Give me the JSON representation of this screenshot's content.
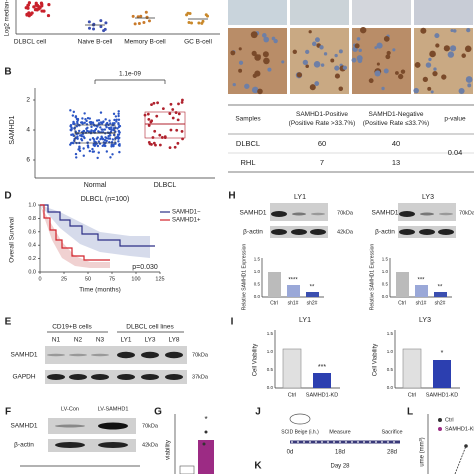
{
  "figure": {
    "a": {
      "y_label": "Log2 median-",
      "groups": [
        "DLBCL cell",
        "Naive B-cell",
        "Memory B-cell",
        "GC B-cell"
      ]
    },
    "table": {
      "header": [
        [
          "Samples"
        ],
        [
          "SAMHD1-Positive",
          "(Positive Rate >33.7%)"
        ],
        [
          "SAMHD1-Negative",
          "(Positive Rate ≤33.7%)"
        ],
        [
          "p-value"
        ]
      ],
      "rows": [
        [
          "DLBCL",
          "60",
          "40"
        ],
        [
          "RHL",
          "7",
          "13"
        ]
      ],
      "p_value": "0.04"
    },
    "b": {
      "label": "B",
      "y_label": "SAMHD1",
      "y_ticks": [
        "2",
        "4",
        "6"
      ],
      "p_value": "1.1e-09",
      "groups": [
        "Normal",
        "DLBCL"
      ]
    },
    "d": {
      "label": "D",
      "title": "DLBCL (n=100)",
      "legend": [
        "SAMHD1−",
        "SAMHD1+"
      ],
      "y_label": "Overall Survival",
      "y_ticks": [
        "0.0",
        "0.2",
        "0.4",
        "0.6",
        "0.8",
        "1.0"
      ],
      "x_ticks": [
        "0",
        "25",
        "50",
        "75",
        "100",
        "125"
      ],
      "x_label": "Time (months)",
      "p_value": "p=0.030"
    },
    "h": {
      "label": "H",
      "titles": [
        "LY1",
        "LY3"
      ],
      "lanes": [
        "sh1#",
        "sh2#"
      ],
      "rows": [
        "SAMHD1",
        "β-actin"
      ],
      "sizes": [
        "70kDa",
        "42kDa"
      ],
      "y_label": "Relative SAMHD1 Expression",
      "y_ticks": [
        "0.0",
        "0.5",
        "1.0",
        "1.5"
      ],
      "groups": [
        "Ctrl",
        "sh1#",
        "sh2#"
      ],
      "stars": [
        [
          "****",
          "**"
        ],
        [
          "***",
          "**"
        ]
      ]
    },
    "e": {
      "label": "E",
      "headers": [
        "CD19+B cells",
        "DLBCL cell lines"
      ],
      "lanes": [
        "N1",
        "N2",
        "N3",
        "LY1",
        "LY3",
        "LY8"
      ],
      "rows": [
        "SAMHD1",
        "GAPDH"
      ],
      "sizes": [
        "70kDa",
        "37kDa"
      ]
    },
    "i": {
      "label": "I",
      "titles": [
        "LY1",
        "LY3"
      ],
      "y_label": "Cell Viability",
      "y_ticks": [
        "0.0",
        "0.5",
        "1.0",
        "1.5"
      ],
      "groups": [
        "Ctrl",
        "SAMHD1-KD"
      ],
      "stars": [
        "***",
        "*"
      ]
    },
    "f": {
      "label": "F",
      "lanes": [
        "LV-Con",
        "LV-SAMHD1"
      ],
      "rows": [
        "SAMHD1",
        "β-actin"
      ],
      "sizes": [
        "70kDa",
        "42kDa"
      ]
    },
    "g": {
      "label": "G",
      "star": "*",
      "y_label": "viability"
    },
    "j": {
      "label": "J",
      "mouse": "SCID Beige (i.h.)",
      "steps": [
        "Measure",
        "Sacrifice"
      ],
      "days": [
        "0d",
        "18d",
        "28d"
      ]
    },
    "k": {
      "label": "K",
      "day": "Day 28"
    },
    "l": {
      "label": "L",
      "legend": [
        "Ctrl",
        "SAMHD1-KD"
      ],
      "y_label": "ume (mm³)"
    }
  }
}
